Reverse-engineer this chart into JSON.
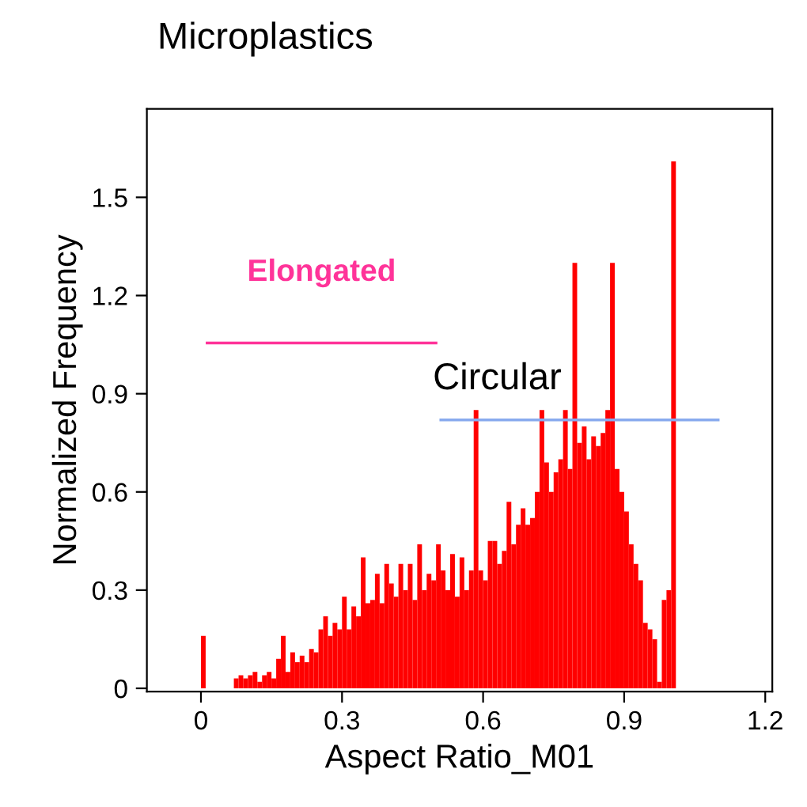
{
  "chart_data": {
    "type": "histogram",
    "title": "Microplastics",
    "xlabel": "Aspect Ratio_M01",
    "ylabel": "Normalized Frequency",
    "color": "#ff0000",
    "bins": [
      0.0,
      0.01,
      0.02,
      0.03,
      0.04,
      0.05,
      0.06,
      0.07,
      0.08,
      0.09,
      0.1,
      0.11,
      0.12,
      0.13,
      0.14,
      0.15,
      0.16,
      0.17,
      0.18,
      0.19,
      0.2,
      0.21,
      0.22,
      0.23,
      0.24,
      0.25,
      0.26,
      0.27,
      0.28,
      0.29,
      0.3,
      0.31,
      0.32,
      0.33,
      0.34,
      0.35,
      0.36,
      0.37,
      0.38,
      0.39,
      0.4,
      0.41,
      0.42,
      0.43,
      0.44,
      0.45,
      0.46,
      0.47,
      0.48,
      0.49,
      0.5,
      0.51,
      0.52,
      0.53,
      0.54,
      0.55,
      0.56,
      0.57,
      0.58,
      0.59,
      0.6,
      0.61,
      0.62,
      0.63,
      0.64,
      0.65,
      0.66,
      0.67,
      0.68,
      0.69,
      0.7,
      0.71,
      0.72,
      0.73,
      0.74,
      0.75,
      0.76,
      0.77,
      0.78,
      0.79,
      0.8,
      0.81,
      0.82,
      0.83,
      0.84,
      0.85,
      0.86,
      0.87,
      0.88,
      0.89,
      0.9,
      0.91,
      0.92,
      0.93,
      0.94,
      0.95,
      0.96,
      0.97,
      0.98,
      0.99,
      1.0,
      1.01
    ],
    "values": [
      0.16,
      0,
      0,
      0,
      0,
      0,
      0,
      0.03,
      0.04,
      0.03,
      0.04,
      0.05,
      0.02,
      0.04,
      0.05,
      0.03,
      0.09,
      0.16,
      0.05,
      0.11,
      0.08,
      0.1,
      0.08,
      0.12,
      0.11,
      0.18,
      0.22,
      0.16,
      0.2,
      0.18,
      0.28,
      0.18,
      0.25,
      0.22,
      0.4,
      0.26,
      0.27,
      0.35,
      0.26,
      0.38,
      0.32,
      0.28,
      0.38,
      0.3,
      0.38,
      0.27,
      0.44,
      0.3,
      0.35,
      0.33,
      0.44,
      0.36,
      0.3,
      0.41,
      0.28,
      0.4,
      0.3,
      0.36,
      0.85,
      0.36,
      0.33,
      0.45,
      0.45,
      0.38,
      0.42,
      0.57,
      0.44,
      0.5,
      0.55,
      0.5,
      0.52,
      0.6,
      0.85,
      0.69,
      0.6,
      0.66,
      0.7,
      0.85,
      0.67,
      1.3,
      0.75,
      0.8,
      0.7,
      0.77,
      0.74,
      0.78,
      0.85,
      1.3,
      0.67,
      0.6,
      0.54,
      0.44,
      0.38,
      0.33,
      0.2,
      0.18,
      0.15,
      0.02,
      0.27,
      0.3,
      1.61
    ],
    "series": [
      {
        "type": "line",
        "color": "#ff3399",
        "x": [
          0.013,
          0.5
        ],
        "values": [
          1.055,
          1.055
        ]
      },
      {
        "type": "line",
        "color": "#88aaee",
        "x": [
          0.51,
          1.1
        ],
        "values": [
          0.82,
          0.82
        ]
      }
    ],
    "annotations": [
      "Elongated",
      "Circular"
    ],
    "xlim": [
      -0.115,
      1.215
    ],
    "ylim": [
      -0.01,
      1.77
    ],
    "xticks": [
      0,
      0.3,
      0.6,
      0.9,
      1.2
    ],
    "yticks": [
      0,
      0.3,
      0.6,
      0.9,
      1.2,
      1.5
    ],
    "grid": false,
    "legend": false
  }
}
